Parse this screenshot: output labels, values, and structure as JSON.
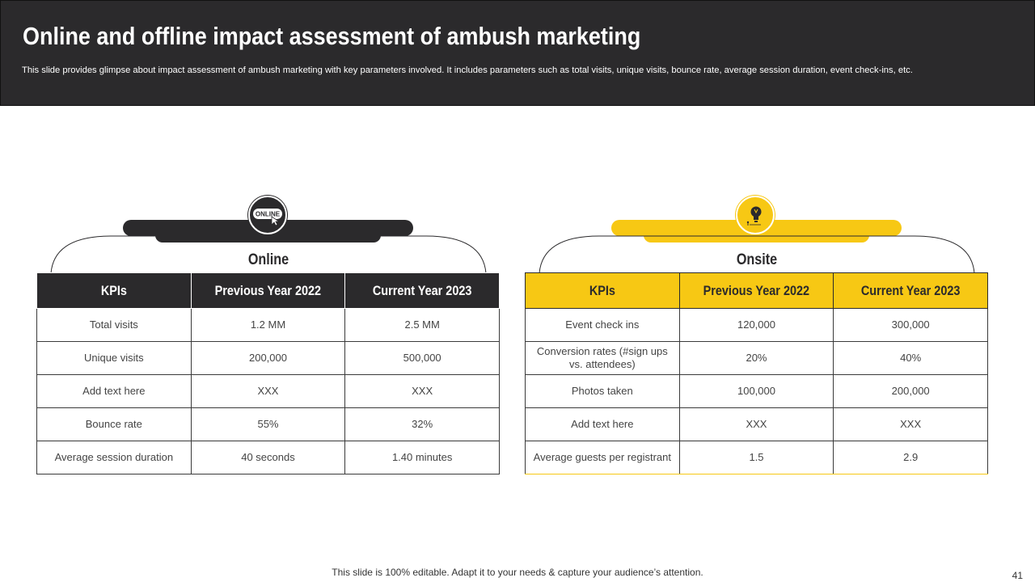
{
  "header": {
    "title": "Online and offline impact assessment of ambush marketing",
    "subtitle": "This slide provides glimpse about impact assessment of ambush marketing with key parameters involved. It includes parameters such as total visits, unique visits, bounce rate, average session duration, event check-ins, etc."
  },
  "colors": {
    "dark": "#2b2a2c",
    "accent": "#f7c814"
  },
  "online": {
    "icon": "online-badge-icon",
    "icon_text": "ONLINE",
    "label": "Online",
    "columns": [
      "KPIs",
      "Previous Year 2022",
      "Current Year 2023"
    ],
    "rows": [
      [
        "Total visits",
        "1.2 MM",
        "2.5 MM"
      ],
      [
        "Unique visits",
        "200,000",
        "500,000"
      ],
      [
        "Add text here",
        "XXX",
        "XXX"
      ],
      [
        "Bounce rate",
        "55%",
        "32%"
      ],
      [
        "Average  session duration",
        "40 seconds",
        "1.40 minutes"
      ]
    ]
  },
  "onsite": {
    "icon": "lightbulb-icon",
    "label": "Onsite",
    "columns": [
      "KPIs",
      "Previous Year 2022",
      "Current Year 2023"
    ],
    "rows": [
      [
        "Event check ins",
        "120,000",
        "300,000"
      ],
      [
        "Conversion  rates (#sign ups vs. attendees)",
        "20%",
        "40%"
      ],
      [
        "Photos taken",
        "100,000",
        "200,000"
      ],
      [
        "Add text here",
        "XXX",
        "XXX"
      ],
      [
        "Average  guests per registrant",
        "1.5",
        "2.9"
      ]
    ]
  },
  "footer": {
    "note": "This slide is 100% editable. Adapt it to your needs & capture your audience’s attention.",
    "page_number": "41"
  }
}
